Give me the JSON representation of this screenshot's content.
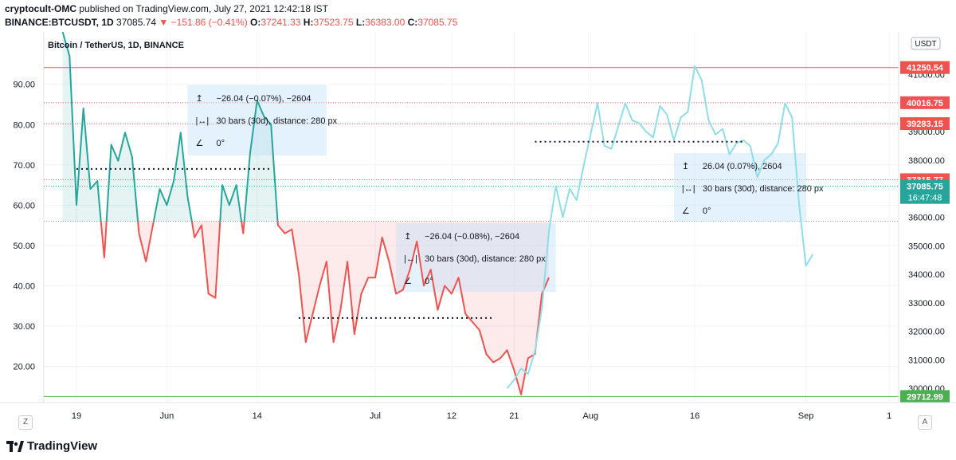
{
  "header": {
    "line1_user": "cryptocult-OMC",
    "line1_rest": "published on TradingView.com, July 27, 2021 12:42:18 IST",
    "symbol": "BINANCE:BTCUSDT, 1D",
    "last": "37085.74",
    "change": "▼ −151.86 (−0.41%)",
    "o_label": "O:",
    "o": "37241.33",
    "h_label": "H:",
    "h": "37523.75",
    "l_label": "L:",
    "l": "36383.00",
    "c_label": "C:",
    "c": "37085.75"
  },
  "footer": {
    "brand": "TradingView"
  },
  "controls": {
    "left": "Z",
    "right": "A"
  },
  "chart_data": {
    "type": "line",
    "title": "Bitcoin / TetherUS, 1D, BINANCE",
    "currency_label": "USDT",
    "left_axis": {
      "ticks": [
        "90.00",
        "80.00",
        "70.00",
        "60.00",
        "50.00",
        "40.00",
        "30.00",
        "20.00"
      ],
      "ylim": [
        11,
        103
      ]
    },
    "right_axis": {
      "ticks": [
        "41000.00",
        "40000.00",
        "39000.00",
        "38000.00",
        "37000.00",
        "36000.00",
        "35000.00",
        "34000.00",
        "33000.00",
        "32000.00",
        "31000.00",
        "30000.00"
      ],
      "partial_top_tick": "4",
      "ylim": [
        29500,
        42500
      ]
    },
    "x_ticks": [
      "19",
      "Jun",
      "14",
      "Jul",
      "12",
      "21",
      "Aug",
      "16",
      "Sep",
      "1"
    ],
    "levels": [
      {
        "value": 41250.54,
        "label": "41250.54",
        "color": "#ef5350",
        "style": "solid"
      },
      {
        "value": 40016.75,
        "label": "40016.75",
        "color": "#ef5350",
        "style": "dotted"
      },
      {
        "value": 39283.15,
        "label": "39283.15",
        "color": "#ef5350",
        "style": "dotted"
      },
      {
        "value": 37315.77,
        "label": "37315.77",
        "color": "#ef5350",
        "style": "dotted"
      },
      {
        "value": 37085.75,
        "label": "37085.75",
        "sublabel": "16:47:48",
        "color": "#26a69a",
        "style": "dotted"
      },
      {
        "value": 29712.99,
        "label": "29712.99",
        "color": "#4caf50",
        "style": "solid"
      }
    ],
    "neutral_line_left": 56,
    "series": [
      {
        "color_above": "#26a69a",
        "color_below": "#ef5350",
        "x": [
          "May 17",
          "May 18",
          "May 19",
          "May 20",
          "May 21",
          "May 22",
          "May 23",
          "May 24",
          "May 25",
          "May 26",
          "May 27",
          "May 28",
          "May 29",
          "May 30",
          "May 31",
          "Jun 1",
          "Jun 2",
          "Jun 3",
          "Jun 4",
          "Jun 5",
          "Jun 6",
          "Jun 7",
          "Jun 8",
          "Jun 9",
          "Jun 10",
          "Jun 11",
          "Jun 12",
          "Jun 13",
          "Jun 14",
          "Jun 15",
          "Jun 16",
          "Jun 17",
          "Jun 18",
          "Jun 19",
          "Jun 20",
          "Jun 21",
          "Jun 22",
          "Jun 23",
          "Jun 24",
          "Jun 25",
          "Jun 26",
          "Jun 27",
          "Jun 28",
          "Jun 29",
          "Jun 30",
          "Jul 1",
          "Jul 2",
          "Jul 3",
          "Jul 4",
          "Jul 5",
          "Jul 6",
          "Jul 7",
          "Jul 8",
          "Jul 9",
          "Jul 10",
          "Jul 11",
          "Jul 12",
          "Jul 13",
          "Jul 14",
          "Jul 15",
          "Jul 16",
          "Jul 17",
          "Jul 18",
          "Jul 19",
          "Jul 20",
          "Jul 21",
          "Jul 22",
          "Jul 23",
          "Jul 24",
          "Jul 25",
          "Jul 26"
        ],
        "values": [
          103,
          97,
          60,
          84,
          64,
          66,
          47,
          75,
          71,
          78,
          72,
          53,
          46,
          55,
          64,
          60,
          66,
          78,
          62,
          52,
          55,
          38,
          37,
          65,
          60,
          65,
          53,
          73,
          86,
          82,
          80,
          55,
          53,
          54,
          43,
          26,
          33,
          40,
          46,
          26,
          34,
          46,
          28,
          38,
          42,
          42,
          52,
          46,
          38,
          39,
          44,
          51,
          40,
          44,
          34,
          40,
          38,
          42,
          33,
          31,
          29,
          23,
          21,
          22,
          24,
          19,
          13,
          22,
          23,
          38,
          42
        ]
      },
      {
        "name": "",
        "color": "#8fdde8",
        "x": [
          "Jul 20",
          "Jul 21",
          "Jul 22",
          "Jul 23",
          "Jul 24",
          "Jul 25",
          "Jul 26",
          "Jul 27",
          "Jul 28",
          "Jul 29",
          "Jul 30",
          "Jul 31",
          "Aug 1",
          "Aug 2",
          "Aug 3",
          "Aug 4",
          "Aug 5",
          "Aug 6",
          "Aug 7",
          "Aug 8",
          "Aug 9",
          "Aug 10",
          "Aug 11",
          "Aug 12",
          "Aug 13",
          "Aug 14",
          "Aug 15",
          "Aug 16",
          "Aug 17",
          "Aug 18",
          "Aug 19",
          "Aug 20",
          "Aug 21",
          "Aug 22",
          "Aug 23",
          "Aug 24",
          "Aug 25",
          "Aug 26",
          "Aug 27",
          "Aug 28",
          "Aug 29",
          "Aug 30",
          "Aug 31",
          "Sep 1",
          "Sep 2"
        ],
        "values": [
          30000,
          30300,
          30700,
          30500,
          31300,
          32800,
          35500,
          37100,
          36000,
          37000,
          36600,
          37800,
          38900,
          40000,
          38500,
          38400,
          39200,
          40000,
          39400,
          39300,
          39000,
          38800,
          39900,
          39600,
          38700,
          39500,
          39700,
          41300,
          40800,
          39400,
          38900,
          39100,
          38200,
          38600,
          38700,
          38500,
          37400,
          38000,
          38200,
          38600,
          40000,
          39500,
          36500,
          34300,
          34700
        ]
      }
    ],
    "annotations": [
      {
        "kind": "dotted_hline",
        "x_from": "May 19",
        "x_to": "Jun 16",
        "y_left": 69
      },
      {
        "kind": "dotted_hline",
        "x_from": "Jun 20",
        "x_to": "Jul 18",
        "y_left": 32
      },
      {
        "kind": "dotted_hline",
        "x_from": "Jul 24",
        "x_to": "Aug 23",
        "y_right": 38650
      },
      {
        "kind": "measure_box",
        "x_from": "Jun 4",
        "x_to": "Jun 24",
        "label_price": "−26.04 (−0.07%), −2604",
        "label_bars": "30 bars (30d), distance: 280 px",
        "label_angle": "0°"
      },
      {
        "kind": "measure_box",
        "x_from": "Jul 4",
        "x_to": "Jul 27",
        "label_price": "−26.04 (−0.08%), −2604",
        "label_bars": "30 bars (30d), distance: 280 px",
        "label_angle": "0°"
      },
      {
        "kind": "measure_box",
        "x_from": "Aug 13",
        "x_to": "Sep 1",
        "label_price": "26.04 (0.07%), 2604",
        "label_bars": "30 bars (30d), distance: 280 px",
        "label_angle": "0°"
      }
    ]
  }
}
